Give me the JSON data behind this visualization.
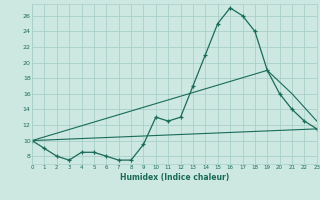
{
  "xlabel": "Humidex (Indice chaleur)",
  "bg_color": "#cce8e0",
  "grid_color": "#aacfca",
  "line_color": "#1a6b5a",
  "x_min": 0,
  "x_max": 23,
  "y_min": 7,
  "y_max": 27.5,
  "yticks": [
    8,
    10,
    12,
    14,
    16,
    18,
    20,
    22,
    24,
    26
  ],
  "xticks": [
    0,
    1,
    2,
    3,
    4,
    5,
    6,
    7,
    8,
    9,
    10,
    11,
    12,
    13,
    14,
    15,
    16,
    17,
    18,
    19,
    20,
    21,
    22,
    23
  ],
  "series1_x": [
    0,
    1,
    2,
    3,
    4,
    5,
    6,
    7,
    8,
    9,
    10,
    11,
    12,
    13,
    14,
    15,
    16,
    17,
    18,
    19,
    20,
    21,
    22,
    23
  ],
  "series1_y": [
    10,
    9,
    8,
    7.5,
    8.5,
    8.5,
    8,
    7.5,
    7.5,
    9.5,
    13,
    12.5,
    13,
    17,
    21,
    25,
    27,
    26,
    24,
    19,
    16,
    14,
    12.5,
    11.5
  ],
  "series2_x": [
    0,
    23
  ],
  "series2_y": [
    10,
    11.5
  ],
  "series3_x": [
    0,
    19,
    21,
    23
  ],
  "series3_y": [
    10,
    19,
    16,
    12.5
  ]
}
